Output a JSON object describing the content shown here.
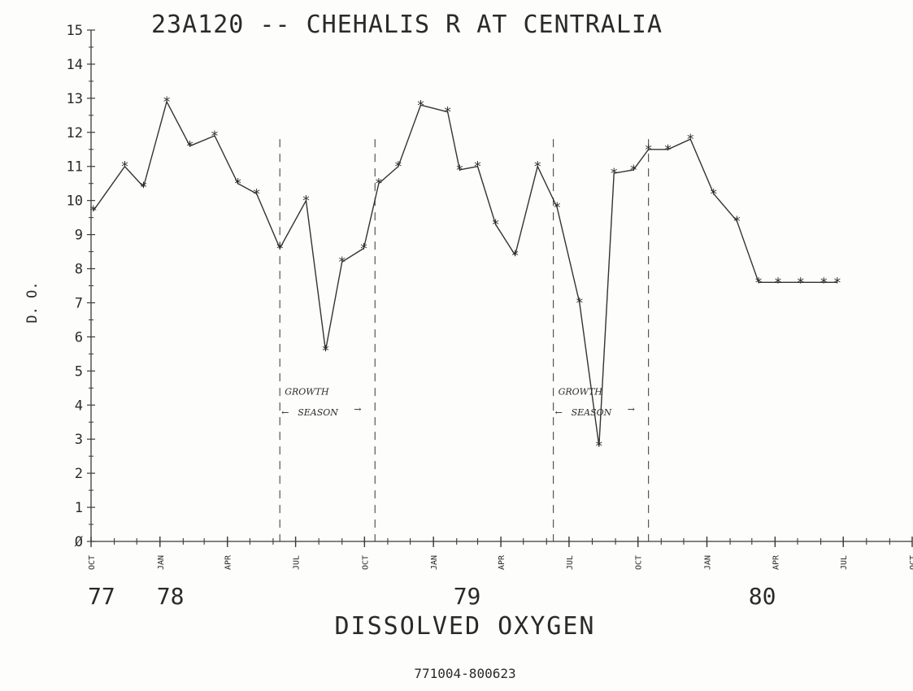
{
  "chart_data": {
    "type": "line",
    "title": "23A120 -- CHEHALIS R AT CENTRALIA",
    "xlabel": "DISSOLVED OXYGEN",
    "subtitle": "771004-800623",
    "ylabel": "D. O.",
    "ylim": [
      0,
      15
    ],
    "yticks": [
      "Ø",
      "1",
      "2",
      "3",
      "4",
      "5",
      "6",
      "7",
      "8",
      "9",
      "10",
      "11",
      "12",
      "13",
      "14",
      "15"
    ],
    "xlim": [
      "1977-10-01",
      "1980-10-01"
    ],
    "xticks": [
      {
        "label": "OCT",
        "date": "1977-10-01"
      },
      {
        "label": "JAN",
        "date": "1978-01-01"
      },
      {
        "label": "APR",
        "date": "1978-04-01"
      },
      {
        "label": "JUL",
        "date": "1978-07-01"
      },
      {
        "label": "OCT",
        "date": "1978-10-01"
      },
      {
        "label": "JAN",
        "date": "1979-01-01"
      },
      {
        "label": "APR",
        "date": "1979-04-01"
      },
      {
        "label": "JUL",
        "date": "1979-07-01"
      },
      {
        "label": "OCT",
        "date": "1979-10-01"
      },
      {
        "label": "JAN",
        "date": "1980-01-01"
      },
      {
        "label": "APR",
        "date": "1980-04-01"
      },
      {
        "label": "JUL",
        "date": "1980-07-01"
      },
      {
        "label": "OCT",
        "date": "1980-10-01"
      }
    ],
    "year_labels": [
      {
        "label": "77",
        "date": "1977-10-01"
      },
      {
        "label": "78",
        "date": "1978-01-01"
      },
      {
        "label": "79",
        "date": "1979-02-01"
      },
      {
        "label": "80",
        "date": "1980-03-01"
      }
    ],
    "growth_season_lines": [
      "1978-06-10",
      "1978-10-15",
      "1979-06-10",
      "1979-10-15"
    ],
    "annotations": [
      {
        "line1": "GROWTH",
        "line2": "SEASON",
        "arrow_left": "←",
        "arrow_right": "→"
      },
      {
        "line1": "GROWTH",
        "line2": "SEASON",
        "arrow_left": "←",
        "arrow_right": "→"
      }
    ],
    "marker": "*",
    "series": [
      {
        "x": [
          "1977-10-04",
          "1977-11-15",
          "1977-12-10",
          "1978-01-10",
          "1978-02-10",
          "1978-03-15",
          "1978-04-15",
          "1978-05-10",
          "1978-06-10",
          "1978-07-15",
          "1978-08-10",
          "1978-09-01",
          "1978-09-30",
          "1978-10-20",
          "1978-11-15",
          "1978-12-15",
          "1979-01-20",
          "1979-02-05",
          "1979-03-01",
          "1979-03-25",
          "1979-04-20",
          "1979-05-20",
          "1979-06-15",
          "1979-07-15",
          "1979-08-10",
          "1979-08-30",
          "1979-09-25",
          "1979-10-15",
          "1979-11-10",
          "1979-12-10",
          "1980-01-10",
          "1980-02-10",
          "1980-03-10",
          "1980-04-05",
          "1980-05-05",
          "1980-06-05",
          "1980-06-23"
        ],
        "values": [
          9.7,
          11.0,
          10.4,
          12.9,
          11.6,
          11.9,
          10.5,
          10.2,
          8.6,
          10.0,
          5.6,
          8.2,
          8.6,
          10.5,
          11.0,
          12.8,
          12.6,
          10.9,
          11.0,
          9.3,
          8.4,
          11.0,
          9.8,
          7.0,
          2.8,
          10.8,
          10.9,
          11.5,
          11.5,
          11.8,
          10.2,
          9.4,
          7.6,
          7.6,
          7.6,
          7.6,
          7.6
        ]
      }
    ]
  }
}
